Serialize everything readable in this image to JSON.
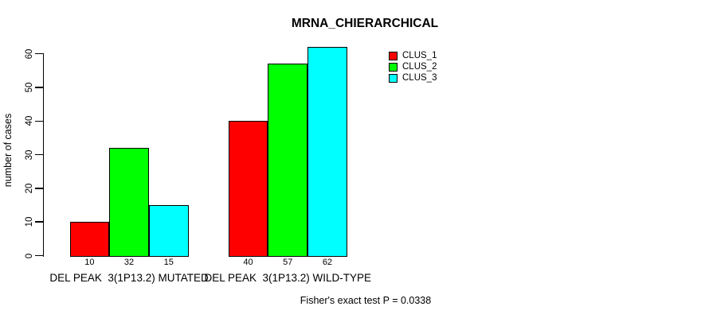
{
  "chart_data": {
    "type": "bar",
    "title": "MRNA_CHIERARCHICAL",
    "ylabel": "number of cases",
    "xlabel": "",
    "categories": [
      "DEL PEAK  3(1P13.2) MUTATED",
      "DEL PEAK  3(1P13.2) WILD-TYPE"
    ],
    "series": [
      {
        "name": "CLUS_1",
        "color": "#ff0000",
        "values": [
          10,
          40
        ]
      },
      {
        "name": "CLUS_2",
        "color": "#00ff00",
        "values": [
          32,
          57
        ]
      },
      {
        "name": "CLUS_3",
        "color": "#00ffff",
        "values": [
          15,
          62
        ]
      }
    ],
    "bar_value_labels": [
      [
        "10",
        "32",
        "15"
      ],
      [
        "40",
        "57",
        "62"
      ]
    ],
    "yticks": [
      0,
      10,
      20,
      30,
      40,
      50,
      60
    ],
    "ylim": [
      0,
      62
    ],
    "grid": false,
    "legend_position": "top-right",
    "annotation": "Fisher's exact test P = 0.0338"
  }
}
